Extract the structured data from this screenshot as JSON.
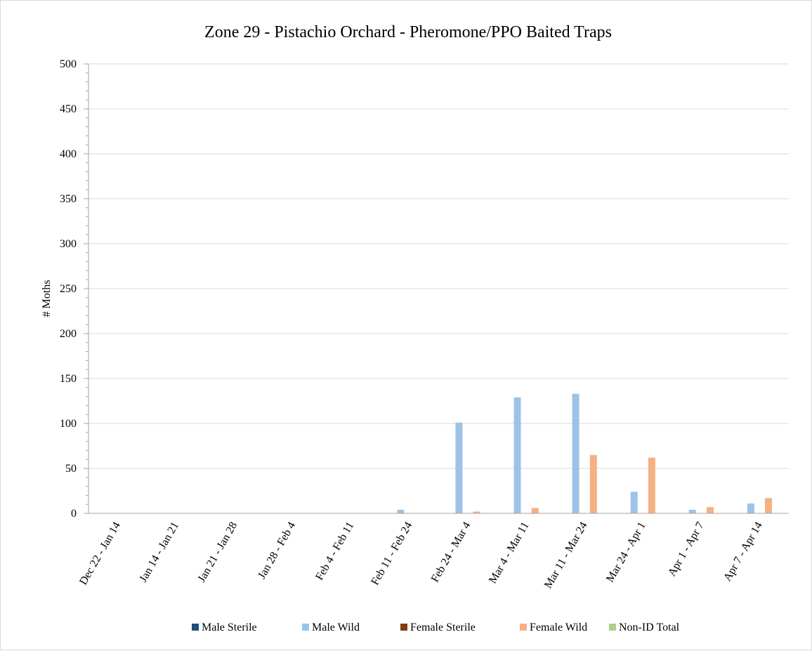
{
  "chart_data": {
    "type": "bar",
    "title": "Zone 29 - Pistachio Orchard  - Pheromone/PPO Baited Traps",
    "xlabel": "",
    "ylabel": "# Moths",
    "ylim": [
      0,
      500
    ],
    "yticks": [
      0,
      50,
      100,
      150,
      200,
      250,
      300,
      350,
      400,
      450,
      500
    ],
    "grid": true,
    "legend_position": "bottom",
    "categories": [
      "Dec 22 - Jan 14",
      "Jan 14 - Jan 21",
      "Jan 21 - Jan 28",
      "Jan 28 - Feb 4",
      "Feb 4 - Feb 11",
      "Feb 11 - Feb 24",
      "Feb 24 - Mar 4",
      "Mar 4 - Mar 11",
      "Mar 11 - Mar 24",
      "Mar 24 - Apr 1",
      "Apr 1 - Apr 7",
      "Apr 7 - Apr 14"
    ],
    "series": [
      {
        "name": "Male Sterile",
        "color": "#1f4e79",
        "values": [
          0,
          0,
          0,
          0,
          0,
          0,
          0,
          0,
          0,
          0,
          0,
          0
        ]
      },
      {
        "name": "Male Wild",
        "color": "#9dc3e6",
        "values": [
          0,
          0,
          0,
          0,
          0,
          4,
          101,
          129,
          133,
          24,
          4,
          11
        ]
      },
      {
        "name": "Female Sterile",
        "color": "#843c0c",
        "values": [
          0,
          0,
          0,
          0,
          0,
          0,
          0,
          0,
          0,
          0,
          0,
          0
        ]
      },
      {
        "name": "Female Wild",
        "color": "#f4b183",
        "values": [
          0,
          0,
          0,
          0,
          0,
          0,
          2,
          6,
          65,
          62,
          7,
          17
        ]
      },
      {
        "name": "Non-ID Total",
        "color": "#a9d18e",
        "values": [
          0,
          0,
          0,
          0,
          0,
          0,
          0,
          0,
          0,
          0,
          0,
          0
        ]
      }
    ]
  }
}
